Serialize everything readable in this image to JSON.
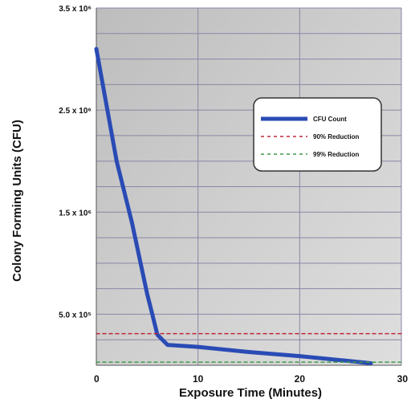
{
  "chart_data": {
    "type": "line",
    "title": "",
    "xlabel": "Exposure Time (Minutes)",
    "ylabel": "Colony Forming Units (CFU)",
    "xlim": [
      0,
      30
    ],
    "ylim": [
      0,
      3500000
    ],
    "x_ticks": [
      0,
      10,
      20,
      30
    ],
    "x_tick_labels": [
      "0",
      "10",
      "20",
      "30"
    ],
    "y_ticks": [
      500000,
      1500000,
      2500000,
      3500000
    ],
    "y_tick_labels": [
      "5.0 x 10⁵",
      "1.5 x 10⁶",
      "2.5 x 10⁶",
      "3.5 x 10⁶"
    ],
    "grid": true,
    "legend_position": "right",
    "series": [
      {
        "name": "CFU Count",
        "color": "#2a4bb5",
        "style": "solid",
        "x": [
          0,
          2,
          3.5,
          5,
          5.5,
          6,
          7,
          10,
          15,
          20,
          25,
          27
        ],
        "y": [
          3100000,
          2000000,
          1400000,
          700000,
          500000,
          300000,
          200000,
          180000,
          130000,
          90000,
          40000,
          20000
        ]
      },
      {
        "name": "90% Reduction",
        "color": "#c0283a",
        "style": "dashed",
        "x": [
          0,
          30
        ],
        "y": [
          310000,
          310000
        ]
      },
      {
        "name": "99% Reduction",
        "color": "#3f9b4a",
        "style": "dashed",
        "x": [
          0,
          30
        ],
        "y": [
          31000,
          31000
        ]
      }
    ]
  }
}
